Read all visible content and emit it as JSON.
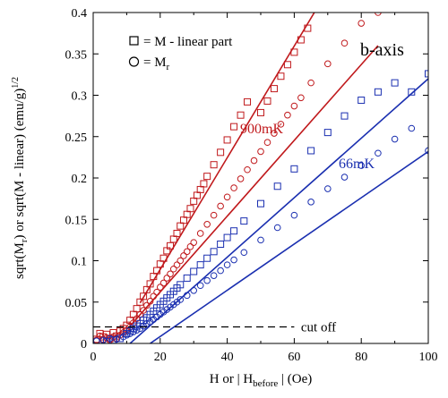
{
  "chart_data": {
    "type": "scatter",
    "xlabel_main": "H or | H",
    "xlabel_sub": "before",
    "xlabel_tail": " |    (Oe)",
    "ylabel_a": "sqrt(M",
    "ylabel_a_sub": "r",
    "ylabel_b": ") or sqrt(M - linear) (emu/g)",
    "ylabel_sup": "1/2",
    "xlim": [
      0,
      100
    ],
    "ylim": [
      0,
      0.4
    ],
    "x_ticks": [
      0,
      20,
      40,
      60,
      80,
      100
    ],
    "y_ticks": [
      0,
      0.05,
      0.1,
      0.15,
      0.2,
      0.25,
      0.3,
      0.35,
      0.4
    ],
    "y_tick_labels": [
      "0",
      "0.05",
      "0.1",
      "0.15",
      "0.2",
      "0.25",
      "0.3",
      "0.35",
      "0.4"
    ],
    "legend": {
      "placement": "top-left",
      "square_label_prefix": "= M - linear part",
      "circle_label_prefix": "= M",
      "circle_label_sub": "r"
    },
    "annotations": {
      "axis_name": "b-axis",
      "temp_high": "900mK",
      "temp_low": "66mK",
      "cutoff": "cut off"
    },
    "cutoff_value": 0.02,
    "colors": {
      "high": "#c0191c",
      "low": "#1a2fb0",
      "cutoff": "#000000"
    },
    "series": [
      {
        "marker": "square",
        "color": "high",
        "points": [
          [
            1,
            0.005
          ],
          [
            2,
            0.012
          ],
          [
            3,
            0.008
          ],
          [
            4,
            0.011
          ],
          [
            5,
            0.006
          ],
          [
            6,
            0.013
          ],
          [
            7,
            0.009
          ],
          [
            8,
            0.015
          ],
          [
            9,
            0.018
          ],
          [
            10,
            0.022
          ],
          [
            11,
            0.028
          ],
          [
            12,
            0.035
          ],
          [
            13,
            0.042
          ],
          [
            14,
            0.05
          ],
          [
            15,
            0.057
          ],
          [
            16,
            0.065
          ],
          [
            17,
            0.072
          ],
          [
            18,
            0.081
          ],
          [
            19,
            0.088
          ],
          [
            20,
            0.096
          ],
          [
            21,
            0.103
          ],
          [
            22,
            0.112
          ],
          [
            23,
            0.118
          ],
          [
            24,
            0.126
          ],
          [
            25,
            0.133
          ],
          [
            26,
            0.142
          ],
          [
            27,
            0.149
          ],
          [
            28,
            0.156
          ],
          [
            29,
            0.163
          ],
          [
            30,
            0.172
          ],
          [
            31,
            0.179
          ],
          [
            32,
            0.186
          ],
          [
            33,
            0.193
          ],
          [
            34,
            0.202
          ],
          [
            36,
            0.216
          ],
          [
            38,
            0.231
          ],
          [
            40,
            0.246
          ],
          [
            42,
            0.262
          ],
          [
            44,
            0.276
          ],
          [
            46,
            0.292
          ],
          [
            50,
            0.279
          ],
          [
            52,
            0.293
          ],
          [
            54,
            0.308
          ],
          [
            56,
            0.323
          ],
          [
            58,
            0.337
          ],
          [
            60,
            0.352
          ],
          [
            62,
            0.367
          ],
          [
            64,
            0.381
          ]
        ],
        "fit": [
          [
            14,
            0.049
          ],
          [
            66,
            0.4
          ]
        ]
      },
      {
        "marker": "circle",
        "color": "high",
        "points": [
          [
            1,
            0.004
          ],
          [
            2,
            0.009
          ],
          [
            3,
            0.005
          ],
          [
            4,
            0.007
          ],
          [
            5,
            0.004
          ],
          [
            6,
            0.008
          ],
          [
            7,
            0.006
          ],
          [
            8,
            0.01
          ],
          [
            9,
            0.013
          ],
          [
            10,
            0.016
          ],
          [
            11,
            0.02
          ],
          [
            12,
            0.025
          ],
          [
            13,
            0.03
          ],
          [
            14,
            0.035
          ],
          [
            15,
            0.04
          ],
          [
            16,
            0.046
          ],
          [
            17,
            0.051
          ],
          [
            18,
            0.057
          ],
          [
            19,
            0.062
          ],
          [
            20,
            0.068
          ],
          [
            21,
            0.073
          ],
          [
            22,
            0.079
          ],
          [
            23,
            0.084
          ],
          [
            24,
            0.09
          ],
          [
            25,
            0.095
          ],
          [
            26,
            0.1
          ],
          [
            27,
            0.106
          ],
          [
            28,
            0.111
          ],
          [
            29,
            0.117
          ],
          [
            30,
            0.122
          ],
          [
            32,
            0.133
          ],
          [
            34,
            0.144
          ],
          [
            36,
            0.155
          ],
          [
            38,
            0.166
          ],
          [
            40,
            0.177
          ],
          [
            42,
            0.188
          ],
          [
            44,
            0.199
          ],
          [
            46,
            0.21
          ],
          [
            48,
            0.221
          ],
          [
            50,
            0.232
          ],
          [
            52,
            0.243
          ],
          [
            54,
            0.254
          ],
          [
            56,
            0.265
          ],
          [
            58,
            0.276
          ],
          [
            60,
            0.287
          ],
          [
            62,
            0.297
          ],
          [
            65,
            0.315
          ],
          [
            70,
            0.338
          ],
          [
            75,
            0.363
          ],
          [
            80,
            0.387
          ],
          [
            85,
            0.4
          ]
        ],
        "fit": [
          [
            11,
            0.021
          ],
          [
            85,
            0.36
          ]
        ]
      },
      {
        "marker": "square",
        "color": "low",
        "points": [
          [
            4,
            0.002
          ],
          [
            6,
            0.004
          ],
          [
            8,
            0.006
          ],
          [
            10,
            0.012
          ],
          [
            11,
            0.015
          ],
          [
            12,
            0.018
          ],
          [
            13,
            0.021
          ],
          [
            14,
            0.024
          ],
          [
            15,
            0.028
          ],
          [
            16,
            0.031
          ],
          [
            17,
            0.035
          ],
          [
            18,
            0.039
          ],
          [
            19,
            0.043
          ],
          [
            20,
            0.047
          ],
          [
            21,
            0.051
          ],
          [
            22,
            0.055
          ],
          [
            23,
            0.059
          ],
          [
            24,
            0.063
          ],
          [
            25,
            0.067
          ],
          [
            26,
            0.071
          ],
          [
            28,
            0.079
          ],
          [
            30,
            0.087
          ],
          [
            32,
            0.095
          ],
          [
            34,
            0.103
          ],
          [
            36,
            0.111
          ],
          [
            38,
            0.12
          ],
          [
            40,
            0.128
          ],
          [
            42,
            0.136
          ],
          [
            45,
            0.148
          ],
          [
            50,
            0.169
          ],
          [
            55,
            0.19
          ],
          [
            60,
            0.211
          ],
          [
            65,
            0.233
          ],
          [
            70,
            0.255
          ],
          [
            75,
            0.275
          ],
          [
            80,
            0.294
          ],
          [
            85,
            0.304
          ],
          [
            90,
            0.315
          ],
          [
            95,
            0.304
          ],
          [
            100,
            0.326
          ]
        ],
        "fit": [
          [
            11,
            0.0
          ],
          [
            100,
            0.32
          ]
        ]
      },
      {
        "marker": "circle",
        "color": "low",
        "points": [
          [
            1,
            0.003
          ],
          [
            3,
            0.004
          ],
          [
            5,
            0.006
          ],
          [
            7,
            0.005
          ],
          [
            9,
            0.008
          ],
          [
            10,
            0.01
          ],
          [
            11,
            0.012
          ],
          [
            12,
            0.014
          ],
          [
            13,
            0.016
          ],
          [
            14,
            0.018
          ],
          [
            15,
            0.021
          ],
          [
            16,
            0.024
          ],
          [
            17,
            0.026
          ],
          [
            18,
            0.029
          ],
          [
            19,
            0.032
          ],
          [
            20,
            0.035
          ],
          [
            21,
            0.038
          ],
          [
            22,
            0.041
          ],
          [
            23,
            0.044
          ],
          [
            24,
            0.047
          ],
          [
            25,
            0.05
          ],
          [
            26,
            0.053
          ],
          [
            28,
            0.058
          ],
          [
            30,
            0.064
          ],
          [
            32,
            0.07
          ],
          [
            34,
            0.076
          ],
          [
            36,
            0.082
          ],
          [
            38,
            0.088
          ],
          [
            40,
            0.095
          ],
          [
            42,
            0.101
          ],
          [
            45,
            0.11
          ],
          [
            50,
            0.125
          ],
          [
            55,
            0.14
          ],
          [
            60,
            0.155
          ],
          [
            65,
            0.171
          ],
          [
            70,
            0.187
          ],
          [
            75,
            0.201
          ],
          [
            80,
            0.215
          ],
          [
            85,
            0.23
          ],
          [
            90,
            0.247
          ],
          [
            95,
            0.26
          ],
          [
            100,
            0.233
          ]
        ],
        "fit": [
          [
            17,
            0.0
          ],
          [
            100,
            0.232
          ]
        ]
      }
    ]
  }
}
